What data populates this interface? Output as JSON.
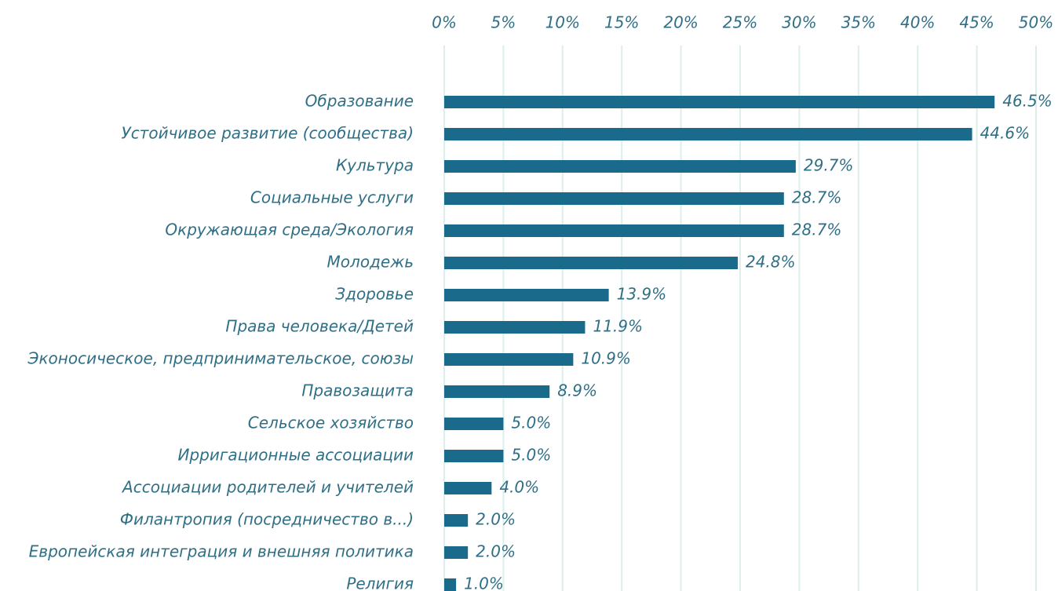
{
  "chart_data": {
    "type": "bar",
    "orientation": "horizontal",
    "categories": [
      "Образование",
      "Устойчивое развитие (сообщества)",
      "Культура",
      "Социальные услуги",
      "Окружающая среда/Экология",
      "Молодежь",
      "Здоровье",
      "Права человека/Детей",
      "Эконосическое, предпринимательское, союзы",
      "Правозащита",
      "Сельское хозяйство",
      "Ирригационные ассоциации",
      "Ассоциации родителей и учителей",
      "Филантропия (посредничество в...)",
      "Европейская интеграция и внешняя политика",
      "Религия"
    ],
    "values": [
      46.5,
      44.6,
      29.7,
      28.7,
      28.7,
      24.8,
      13.9,
      11.9,
      10.9,
      8.9,
      5.0,
      5.0,
      4.0,
      2.0,
      2.0,
      1.0
    ],
    "value_labels": [
      "46.5%",
      "44.6%",
      "29.7%",
      "28.7%",
      "28.7%",
      "24.8%",
      "13.9%",
      "11.9%",
      "10.9%",
      "8.9%",
      "5.0%",
      "5.0%",
      "4.0%",
      "2.0%",
      "2.0%",
      "1.0%"
    ],
    "color": "#1a6a8c",
    "xlim": [
      0,
      50
    ],
    "xticks": [
      {
        "value": 0,
        "label": "0%"
      },
      {
        "value": 5,
        "label": "5%"
      },
      {
        "value": 10,
        "label": "10%"
      },
      {
        "value": 15,
        "label": "15%"
      },
      {
        "value": 20,
        "label": "20%"
      },
      {
        "value": 25,
        "label": "25%"
      },
      {
        "value": 30,
        "label": "30%"
      },
      {
        "value": 35,
        "label": "35%"
      },
      {
        "value": 40,
        "label": "40%"
      },
      {
        "value": 45,
        "label": "45%"
      },
      {
        "value": 50,
        "label": "50%"
      }
    ],
    "grid": true
  }
}
